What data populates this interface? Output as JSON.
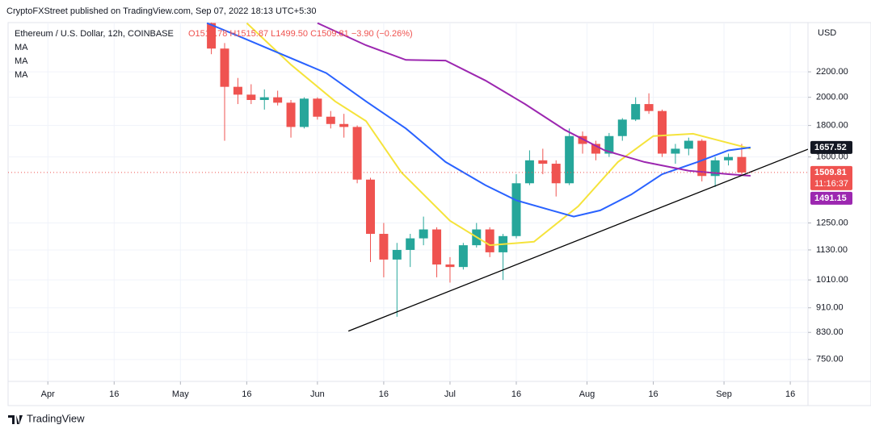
{
  "header": "CryptoFXStreet published on TradingView.com, Sep 07, 2022 18:13 UTC+5:30",
  "footer": "TradingView",
  "chart_data": {
    "type": "candlestick",
    "symbol": "Ethereum / U.S. Dollar, 12h, COINBASE",
    "ohlc_text": "O1513.78 H1515.87 L1499.50 C1509.81 −3.90 (−0.26%)",
    "currency": "USD",
    "log_scale": true,
    "grid": true,
    "up_color": "#26a69a",
    "down_color": "#ef5350",
    "xlim": [
      "2022-03-23",
      "2022-09-20"
    ],
    "xticks": [
      {
        "value": "2022-04-01",
        "label": "Apr"
      },
      {
        "value": "2022-04-16",
        "label": "16"
      },
      {
        "value": "2022-05-01",
        "label": "May"
      },
      {
        "value": "2022-05-16",
        "label": "16"
      },
      {
        "value": "2022-06-01",
        "label": "Jun"
      },
      {
        "value": "2022-06-16",
        "label": "16"
      },
      {
        "value": "2022-07-01",
        "label": "Jul"
      },
      {
        "value": "2022-07-16",
        "label": "16"
      },
      {
        "value": "2022-08-01",
        "label": "Aug"
      },
      {
        "value": "2022-08-16",
        "label": "16"
      },
      {
        "value": "2022-09-01",
        "label": "Sep"
      },
      {
        "value": "2022-09-16",
        "label": "16"
      }
    ],
    "ylim": [
      691,
      2645
    ],
    "yticks": [
      {
        "value": 2200,
        "label": "2200.00"
      },
      {
        "value": 2000,
        "label": "2000.00"
      },
      {
        "value": 1800,
        "label": "1800.00"
      },
      {
        "value": 1600,
        "label": "1600.00"
      },
      {
        "value": 1250,
        "label": "1250.00"
      },
      {
        "value": 1130,
        "label": "1130.00"
      },
      {
        "value": 1010,
        "label": "1010.00"
      },
      {
        "value": 910,
        "label": "910.00"
      },
      {
        "value": 830,
        "label": "830.00"
      },
      {
        "value": 750,
        "label": "750.00"
      }
    ],
    "candles": {
      "x": [
        "2022-05-08",
        "2022-05-11",
        "2022-05-14",
        "2022-05-17",
        "2022-05-20",
        "2022-05-23",
        "2022-05-26",
        "2022-05-29",
        "2022-06-01",
        "2022-06-04",
        "2022-06-07",
        "2022-06-10",
        "2022-06-13",
        "2022-06-16",
        "2022-06-19",
        "2022-06-22",
        "2022-06-25",
        "2022-06-28",
        "2022-07-01",
        "2022-07-04",
        "2022-07-07",
        "2022-07-10",
        "2022-07-13",
        "2022-07-16",
        "2022-07-19",
        "2022-07-22",
        "2022-07-25",
        "2022-07-28",
        "2022-07-31",
        "2022-08-03",
        "2022-08-06",
        "2022-08-09",
        "2022-08-12",
        "2022-08-15",
        "2022-08-18",
        "2022-08-21",
        "2022-08-24",
        "2022-08-27",
        "2022-08-30",
        "2022-09-02",
        "2022-09-05"
      ],
      "open": [
        2640,
        2400,
        2080,
        2020,
        1980,
        2000,
        1960,
        1790,
        1990,
        1860,
        1810,
        1790,
        1470,
        1200,
        1090,
        1130,
        1180,
        1220,
        1070,
        1060,
        1150,
        1220,
        1120,
        1190,
        1450,
        1580,
        1560,
        1450,
        1730,
        1680,
        1620,
        1730,
        1840,
        1950,
        1900,
        1620,
        1650,
        1700,
        1490,
        1580,
        1600
      ],
      "high": [
        2700,
        2450,
        2150,
        2100,
        2060,
        2050,
        1980,
        2000,
        2000,
        1900,
        1880,
        1800,
        1480,
        1250,
        1160,
        1200,
        1280,
        1230,
        1100,
        1160,
        1250,
        1230,
        1200,
        1500,
        1640,
        1650,
        1580,
        1780,
        1760,
        1700,
        1750,
        1850,
        2000,
        2030,
        1910,
        1680,
        1720,
        1710,
        1600,
        1620,
        1680
      ],
      "low": [
        2350,
        1700,
        1950,
        1950,
        1910,
        1940,
        1720,
        1780,
        1840,
        1780,
        1720,
        1450,
        1080,
        1020,
        880,
        1060,
        1150,
        1020,
        1000,
        1050,
        1140,
        1100,
        1010,
        1180,
        1440,
        1500,
        1380,
        1440,
        1620,
        1580,
        1600,
        1700,
        1830,
        1880,
        1600,
        1560,
        1610,
        1460,
        1430,
        1550,
        1499.5
      ],
      "close": [
        2400,
        2080,
        2020,
        1980,
        2000,
        1960,
        1790,
        1990,
        1860,
        1810,
        1790,
        1470,
        1200,
        1090,
        1130,
        1180,
        1220,
        1070,
        1060,
        1150,
        1220,
        1120,
        1190,
        1450,
        1580,
        1560,
        1450,
        1730,
        1680,
        1620,
        1730,
        1840,
        1950,
        1900,
        1620,
        1650,
        1700,
        1490,
        1580,
        1600,
        1509.81
      ]
    },
    "series": [
      {
        "name": "MA",
        "color": "#f5e33b",
        "x": [
          "2022-05-16",
          "2022-05-26",
          "2022-06-05",
          "2022-06-12",
          "2022-06-20",
          "2022-07-01",
          "2022-07-10",
          "2022-07-20",
          "2022-07-30",
          "2022-08-08",
          "2022-08-16",
          "2022-08-25",
          "2022-09-07"
        ],
        "values": [
          2640,
          2260,
          1970,
          1830,
          1510,
          1260,
          1150,
          1165,
          1330,
          1570,
          1730,
          1745,
          1650
        ]
      },
      {
        "name": "MA",
        "color": "#2962ff",
        "x": [
          "2022-05-07",
          "2022-05-15",
          "2022-06-03",
          "2022-06-12",
          "2022-06-21",
          "2022-06-30",
          "2022-07-09",
          "2022-07-16",
          "2022-07-24",
          "2022-07-29",
          "2022-08-04",
          "2022-08-11",
          "2022-08-18",
          "2022-08-26",
          "2022-09-02",
          "2022-09-07"
        ],
        "values": [
          2640,
          2500,
          2190,
          1970,
          1780,
          1570,
          1440,
          1360,
          1310,
          1280,
          1310,
          1390,
          1500,
          1570,
          1640,
          1657.52
        ]
      },
      {
        "name": "MA",
        "color": "#9c27b0",
        "x": [
          "2022-06-01",
          "2022-06-12",
          "2022-06-21",
          "2022-06-30",
          "2022-07-09",
          "2022-07-18",
          "2022-07-27",
          "2022-08-05",
          "2022-08-14",
          "2022-08-24",
          "2022-09-02",
          "2022-09-07"
        ],
        "values": [
          2640,
          2430,
          2300,
          2295,
          2130,
          1950,
          1770,
          1640,
          1570,
          1520,
          1500,
          1491.15
        ]
      }
    ],
    "trendline": {
      "color": "#000000",
      "x": [
        "2022-06-08",
        "2022-09-20"
      ],
      "values": [
        834,
        1647
      ]
    },
    "price_labels": [
      {
        "value": 1657.52,
        "color": "#131722"
      },
      {
        "value": 1509.81,
        "color": "#ef5350",
        "countdown": "11:16:37"
      },
      {
        "value": 1491.15,
        "color": "#9c27b0"
      }
    ]
  }
}
